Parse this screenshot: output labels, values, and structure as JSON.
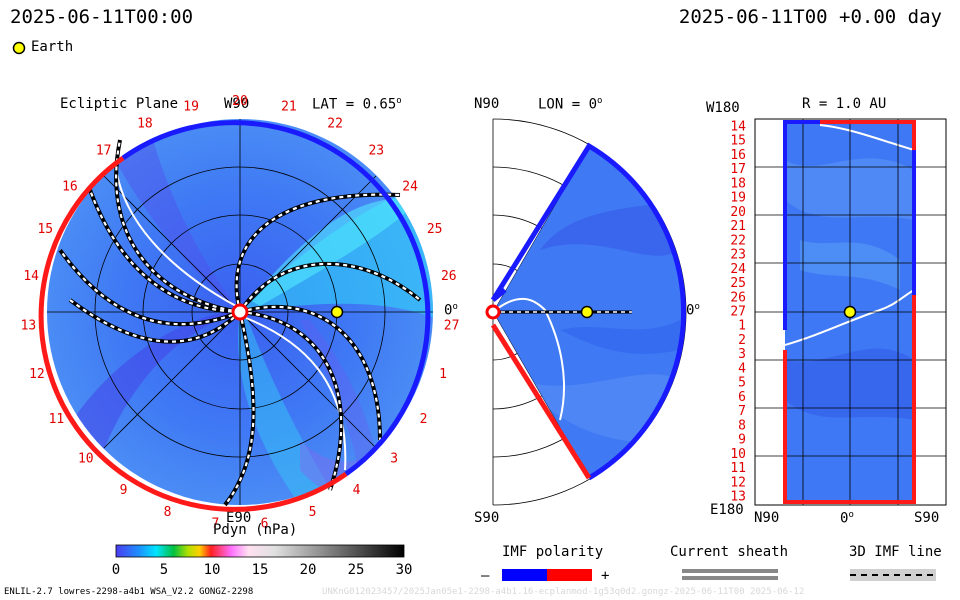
{
  "header": {
    "left_time": "2025-06-11T00:00",
    "right_time": "2025-06-11T00 +0.00 day"
  },
  "legend": {
    "earth_label": "Earth",
    "earth_color": "#ffff00"
  },
  "panel_ecliptic": {
    "title": "Ecliptic Plane",
    "lat_label": "LAT = 0.65",
    "lat_sup": "o",
    "top_label": "W90",
    "bottom_label": "E90",
    "right_label": "0",
    "right_sup": "o",
    "carrington_numbers": [
      "20",
      "21",
      "22",
      "23",
      "24",
      "25",
      "26",
      "27",
      "1",
      "2",
      "3",
      "4",
      "5",
      "6",
      "7",
      "8",
      "9",
      "10",
      "11",
      "12",
      "13",
      "14",
      "15",
      "16",
      "17",
      "18",
      "19"
    ]
  },
  "panel_meridional": {
    "top_label": "N90",
    "lon_label": "LON = 0",
    "lon_sup": "o",
    "bottom_label": "S90",
    "right_label": "0",
    "right_sup": "o"
  },
  "panel_radial": {
    "top_left_label": "W180",
    "r_label": "R = 1.0 AU",
    "bottom_left_label": "E180",
    "x_labels": [
      "N90",
      "0",
      "S90"
    ],
    "x_sup": "o",
    "y_numbers": [
      "14",
      "15",
      "16",
      "17",
      "18",
      "19",
      "20",
      "21",
      "22",
      "23",
      "24",
      "25",
      "26",
      "27",
      "1",
      "2",
      "3",
      "4",
      "5",
      "6",
      "7",
      "8",
      "9",
      "10",
      "11",
      "12",
      "13"
    ]
  },
  "colorbar": {
    "title": "Pdyn (nPa)",
    "ticks": [
      "0",
      "5",
      "10",
      "15",
      "20",
      "25",
      "30"
    ]
  },
  "imf_legend": {
    "title": "IMF polarity",
    "minus": "–",
    "plus": "+",
    "negative_color": "#0000ff",
    "positive_color": "#ff0000"
  },
  "sheath_legend": {
    "title": "Current sheath"
  },
  "imf3d_legend": {
    "title": "3D IMF line"
  },
  "footer": {
    "left": "ENLIL-2.7 lowres-2298-a4b1 WSA_V2.2 GONGZ-2298",
    "right": "UNKnG012023457/2025Jan05e1-2298-a4b1.16-ecplanmod-1g53q0d2.gongz-2025-06-11T00 2025-06-12"
  }
}
